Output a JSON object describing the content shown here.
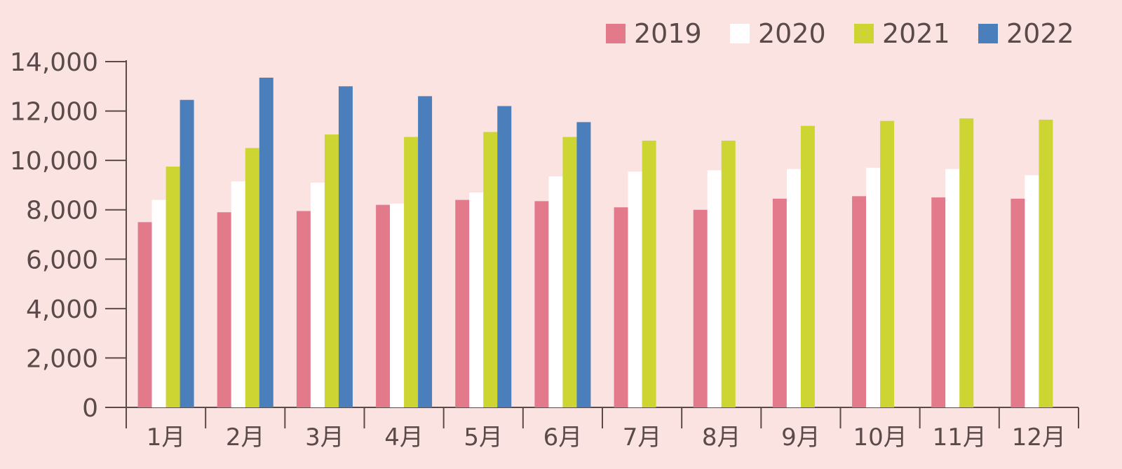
{
  "chart_data": {
    "type": "bar",
    "categories": [
      "1月",
      "2月",
      "3月",
      "4月",
      "5月",
      "6月",
      "7月",
      "8月",
      "9月",
      "10月",
      "11月",
      "12月"
    ],
    "series": [
      {
        "name": "2019",
        "color": "#e27a8b",
        "values": [
          7500,
          7900,
          7950,
          8200,
          8400,
          8350,
          8100,
          8000,
          8450,
          8550,
          8500,
          8450
        ]
      },
      {
        "name": "2020",
        "color": "#ffffff",
        "values": [
          8400,
          9150,
          9100,
          8250,
          8700,
          9350,
          9550,
          9600,
          9650,
          9700,
          9650,
          9400
        ]
      },
      {
        "name": "2021",
        "color": "#cdd533",
        "values": [
          9750,
          10500,
          11050,
          10950,
          11150,
          10950,
          10800,
          10800,
          11400,
          11600,
          11700,
          11650
        ]
      },
      {
        "name": "2022",
        "color": "#4a7fbb",
        "values": [
          12450,
          13350,
          13000,
          12600,
          12200,
          11550,
          null,
          null,
          null,
          null,
          null,
          null
        ]
      }
    ],
    "yticks": [
      "0",
      "2,000",
      "4,000",
      "6,000",
      "8,000",
      "10,000",
      "12,000",
      "14,000"
    ],
    "ylim": [
      0,
      14000
    ],
    "title": "",
    "xlabel": "",
    "ylabel": "",
    "legend_position": "top-right",
    "grid": false
  },
  "colors": {
    "background": "#fbe3e2",
    "axis": "#5a4a4a"
  }
}
